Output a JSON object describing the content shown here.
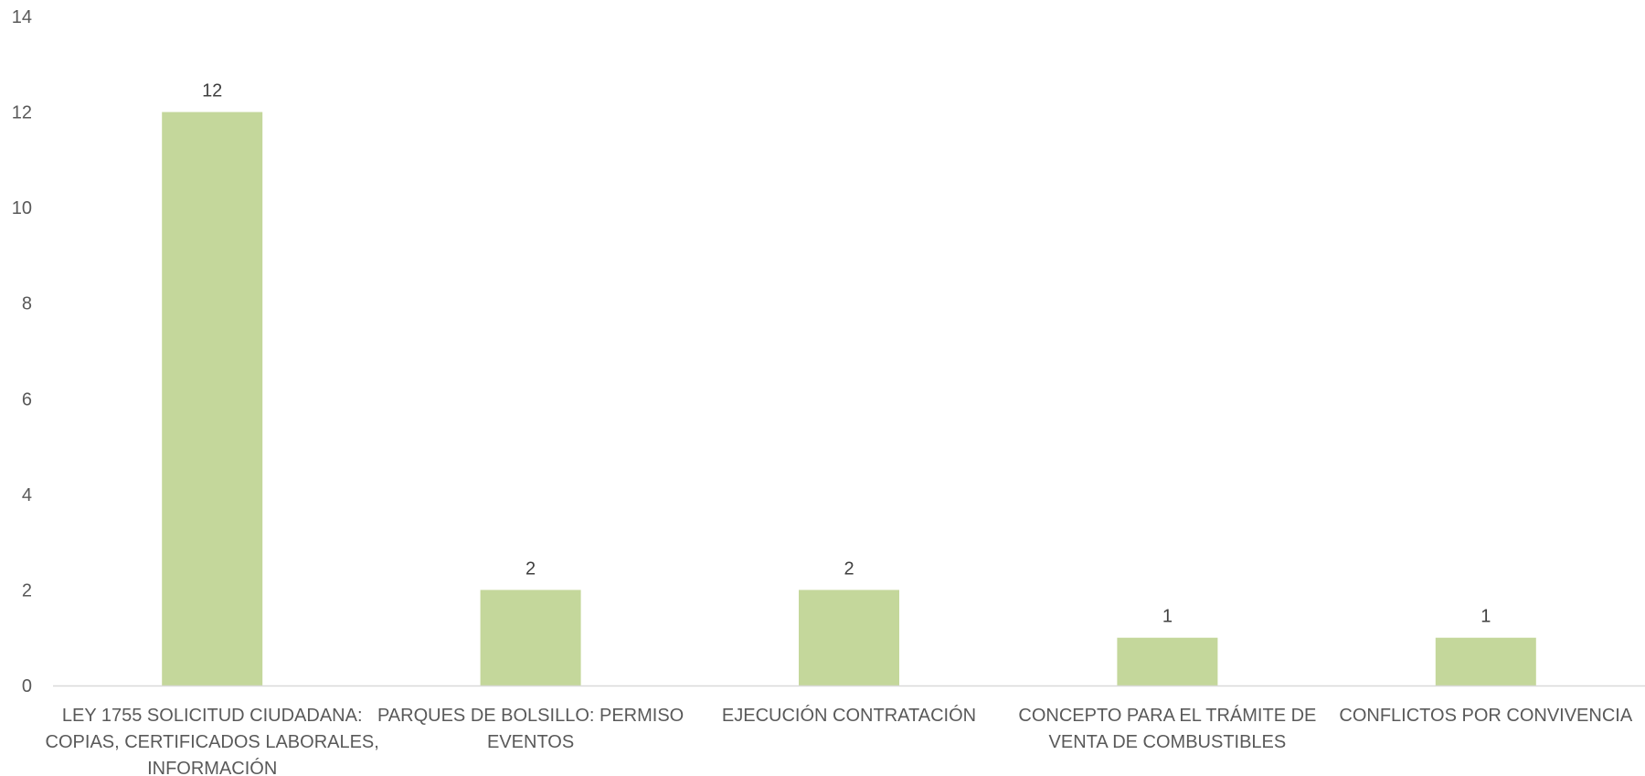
{
  "chart_data": {
    "type": "bar",
    "categories": [
      [
        "LEY 1755 SOLICITUD CIUDADANA:",
        "COPIAS, CERTIFICADOS LABORALES,",
        "INFORMACIÓN"
      ],
      [
        "PARQUES DE BOLSILLO: PERMISO",
        "EVENTOS"
      ],
      [
        "EJECUCIÓN CONTRATACIÓN"
      ],
      [
        "CONCEPTO PARA EL TRÁMITE DE",
        "VENTA DE COMBUSTIBLES"
      ],
      [
        "CONFLICTOS POR CONVIVENCIA"
      ]
    ],
    "values": [
      12,
      2,
      2,
      1,
      1
    ],
    "ylim": [
      0,
      14
    ],
    "yticks": [
      0,
      2,
      4,
      6,
      8,
      10,
      12,
      14
    ],
    "grid": false,
    "bar_color": "#c4d79b",
    "axis_color": "#d9d9d9",
    "data_labels": true
  }
}
